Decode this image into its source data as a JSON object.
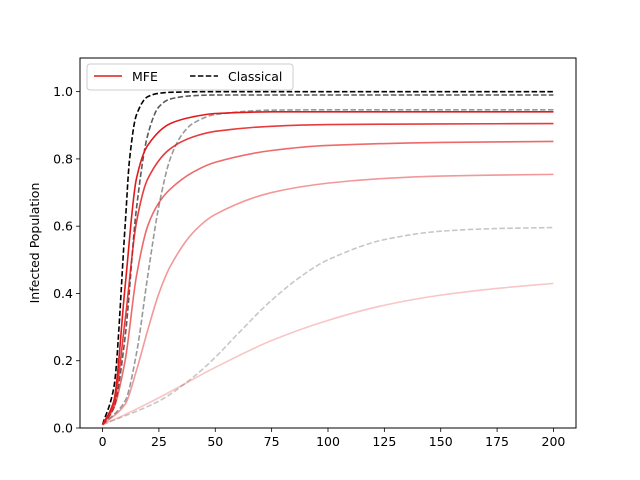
{
  "chart_data": {
    "type": "line",
    "title": "",
    "xlabel": "",
    "ylabel": "Infected Population",
    "xlim": [
      -10,
      210
    ],
    "ylim": [
      0,
      1.1
    ],
    "xticks": [
      0,
      25,
      50,
      75,
      100,
      125,
      150,
      175,
      200
    ],
    "yticks": [
      0.0,
      0.2,
      0.4,
      0.6,
      0.8,
      1.0
    ],
    "grid": false,
    "legend": {
      "placement": "top-left",
      "entries": [
        {
          "label": "MFE",
          "color": "#e31a1c",
          "dash": "solid"
        },
        {
          "label": "Classical",
          "color": "#000000",
          "dash": "dashed"
        }
      ]
    },
    "series": [
      {
        "group": "MFE",
        "color": "#e31a1c",
        "opacity": 1.0,
        "dash": "solid",
        "x": [
          0,
          5,
          10,
          15,
          20,
          30,
          40,
          50,
          75,
          100,
          150,
          200
        ],
        "y": [
          0.01,
          0.08,
          0.42,
          0.74,
          0.84,
          0.905,
          0.925,
          0.935,
          0.94,
          0.94,
          0.94,
          0.94
        ]
      },
      {
        "group": "MFE",
        "color": "#e31a1c",
        "opacity": 0.85,
        "dash": "solid",
        "x": [
          0,
          5,
          10,
          15,
          20,
          30,
          40,
          50,
          75,
          100,
          150,
          200
        ],
        "y": [
          0.01,
          0.07,
          0.32,
          0.61,
          0.74,
          0.83,
          0.865,
          0.882,
          0.897,
          0.902,
          0.904,
          0.905
        ]
      },
      {
        "group": "MFE",
        "color": "#e31a1c",
        "opacity": 0.65,
        "dash": "solid",
        "x": [
          0,
          5,
          10,
          15,
          20,
          25,
          30,
          40,
          50,
          75,
          100,
          150,
          200
        ],
        "y": [
          0.01,
          0.06,
          0.2,
          0.45,
          0.6,
          0.67,
          0.71,
          0.76,
          0.79,
          0.825,
          0.84,
          0.849,
          0.852
        ]
      },
      {
        "group": "MFE",
        "color": "#e31a1c",
        "opacity": 0.45,
        "dash": "solid",
        "x": [
          0,
          10,
          15,
          20,
          25,
          30,
          40,
          50,
          75,
          100,
          125,
          150,
          175,
          200
        ],
        "y": [
          0.01,
          0.07,
          0.17,
          0.29,
          0.4,
          0.48,
          0.58,
          0.635,
          0.7,
          0.728,
          0.742,
          0.749,
          0.752,
          0.754
        ]
      },
      {
        "group": "MFE",
        "color": "#e31a1c",
        "opacity": 0.25,
        "dash": "solid",
        "x": [
          0,
          10,
          25,
          50,
          75,
          100,
          125,
          150,
          175,
          200
        ],
        "y": [
          0.01,
          0.04,
          0.09,
          0.18,
          0.26,
          0.32,
          0.365,
          0.395,
          0.415,
          0.43
        ]
      },
      {
        "group": "Classical",
        "color": "#000000",
        "opacity": 1.0,
        "dash": "dashed",
        "x": [
          0,
          5,
          10,
          12,
          15,
          20,
          25,
          30,
          50,
          100,
          200
        ],
        "y": [
          0.01,
          0.12,
          0.6,
          0.8,
          0.93,
          0.985,
          0.995,
          0.998,
          1.0,
          1.0,
          1.0
        ]
      },
      {
        "group": "Classical",
        "color": "#000000",
        "opacity": 0.65,
        "dash": "dashed",
        "x": [
          0,
          5,
          10,
          15,
          20,
          25,
          30,
          40,
          50,
          100,
          200
        ],
        "y": [
          0.01,
          0.06,
          0.27,
          0.65,
          0.87,
          0.955,
          0.978,
          0.988,
          0.99,
          0.99,
          0.99
        ]
      },
      {
        "group": "Classical",
        "color": "#000000",
        "opacity": 0.4,
        "dash": "dashed",
        "x": [
          0,
          10,
          15,
          20,
          25,
          30,
          35,
          40,
          50,
          75,
          100,
          200
        ],
        "y": [
          0.01,
          0.08,
          0.22,
          0.45,
          0.66,
          0.8,
          0.87,
          0.905,
          0.932,
          0.945,
          0.946,
          0.946
        ]
      },
      {
        "group": "Classical",
        "color": "#000000",
        "opacity": 0.22,
        "dash": "dashed",
        "x": [
          0,
          25,
          40,
          50,
          60,
          75,
          90,
          100,
          125,
          150,
          175,
          200
        ],
        "y": [
          0.01,
          0.08,
          0.15,
          0.21,
          0.28,
          0.38,
          0.46,
          0.5,
          0.56,
          0.585,
          0.593,
          0.596
        ]
      }
    ]
  }
}
